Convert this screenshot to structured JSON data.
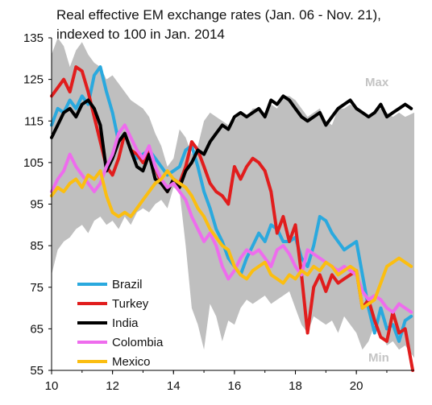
{
  "chart_data": {
    "type": "line",
    "title_lines": [
      "Real effective EM exchange rates (Jan. 06 - Nov. 21),",
      "indexed to 100 in Jan. 2014"
    ],
    "xlabel": "",
    "ylabel": "",
    "x_unit": "year (20xx)",
    "xlim": [
      10,
      21.9
    ],
    "ylim": [
      55,
      135
    ],
    "x_ticks": [
      {
        "value": 10,
        "label": "10"
      },
      {
        "value": 12,
        "label": "12"
      },
      {
        "value": 14,
        "label": "14"
      },
      {
        "value": 16,
        "label": "16"
      },
      {
        "value": 18,
        "label": "18"
      },
      {
        "value": 20,
        "label": "20"
      }
    ],
    "y_ticks": [
      {
        "value": 55,
        "label": "55"
      },
      {
        "value": 65,
        "label": "65"
      },
      {
        "value": 75,
        "label": "75"
      },
      {
        "value": 85,
        "label": "85"
      },
      {
        "value": 95,
        "label": "95"
      },
      {
        "value": 105,
        "label": "105"
      },
      {
        "value": 115,
        "label": "115"
      },
      {
        "value": 125,
        "label": "125"
      },
      {
        "value": 135,
        "label": "135"
      }
    ],
    "grid": false,
    "legend_position": "bottom-left",
    "band": {
      "color": "#bfbfbf",
      "max_label": "Max",
      "min_label": "Min",
      "x": [
        10.0,
        10.2,
        10.4,
        10.6,
        10.8,
        11.0,
        11.2,
        11.4,
        11.6,
        11.8,
        12.0,
        12.2,
        12.4,
        12.6,
        12.8,
        13.0,
        13.2,
        13.4,
        13.6,
        13.8,
        14.0,
        14.2,
        14.4,
        14.6,
        14.8,
        15.0,
        15.2,
        15.4,
        15.6,
        15.8,
        16.0,
        16.2,
        16.4,
        16.6,
        16.8,
        17.0,
        17.2,
        17.4,
        17.6,
        17.8,
        18.0,
        18.2,
        18.4,
        18.6,
        18.8,
        19.0,
        19.2,
        19.4,
        19.6,
        19.8,
        20.0,
        20.2,
        20.4,
        20.6,
        20.8,
        21.0,
        21.2,
        21.4,
        21.6,
        21.9
      ],
      "upper": [
        131,
        135,
        133,
        128,
        132,
        134,
        131,
        129,
        128,
        125,
        126,
        124,
        122,
        120,
        119,
        118,
        116,
        112,
        109,
        104,
        106,
        113,
        111,
        107,
        109,
        115,
        117,
        116,
        115,
        114,
        115,
        117,
        116,
        118,
        118,
        116,
        119,
        118,
        121,
        121,
        120,
        118,
        116,
        117,
        118,
        115,
        114,
        118,
        118,
        119,
        118,
        117,
        116,
        117,
        118,
        117,
        116,
        117,
        116,
        117
      ],
      "lower": [
        78,
        84,
        86,
        87,
        89,
        90,
        88,
        91,
        92,
        90,
        91,
        89,
        92,
        90,
        93,
        94,
        93,
        95,
        96,
        94,
        99,
        98,
        85,
        70,
        66,
        60,
        71,
        68,
        62,
        67,
        66,
        70,
        72,
        71,
        72,
        73,
        71,
        72,
        73,
        74,
        70,
        66,
        64,
        68,
        67,
        66,
        67,
        64,
        68,
        66,
        64,
        60,
        62,
        66,
        64,
        61,
        62,
        60,
        61,
        58
      ]
    },
    "series": [
      {
        "name": "Brazil",
        "color": "#2aa9de",
        "x": [
          10.0,
          10.2,
          10.4,
          10.6,
          10.8,
          11.0,
          11.2,
          11.4,
          11.6,
          11.8,
          12.0,
          12.2,
          12.4,
          12.6,
          12.8,
          13.0,
          13.2,
          13.4,
          13.6,
          13.8,
          14.0,
          14.2,
          14.4,
          14.6,
          14.8,
          15.0,
          15.2,
          15.4,
          15.6,
          15.8,
          16.0,
          16.2,
          16.4,
          16.6,
          16.8,
          17.0,
          17.2,
          17.4,
          17.6,
          17.8,
          18.0,
          18.2,
          18.4,
          18.6,
          18.8,
          19.0,
          19.2,
          19.4,
          19.6,
          19.8,
          20.0,
          20.2,
          20.4,
          20.6,
          20.8,
          21.0,
          21.2,
          21.4,
          21.6,
          21.8
        ],
        "values": [
          114,
          118,
          117,
          120,
          118,
          121,
          119,
          126,
          128,
          122,
          117,
          110,
          112,
          108,
          106,
          107,
          108,
          106,
          104,
          102,
          103,
          104,
          108,
          109,
          104,
          98,
          94,
          89,
          86,
          82,
          80,
          78,
          82,
          85,
          88,
          86,
          90,
          89,
          86,
          86,
          87,
          82,
          80,
          85,
          92,
          91,
          88,
          86,
          84,
          85,
          86,
          78,
          70,
          64,
          70,
          65,
          66,
          62,
          67,
          68
        ]
      },
      {
        "name": "Turkey",
        "color": "#e11d1d",
        "x": [
          10.0,
          10.2,
          10.4,
          10.6,
          10.8,
          11.0,
          11.2,
          11.4,
          11.6,
          11.8,
          12.0,
          12.2,
          12.4,
          12.6,
          12.8,
          13.0,
          13.2,
          13.4,
          13.6,
          13.8,
          14.0,
          14.2,
          14.4,
          14.6,
          14.8,
          15.0,
          15.2,
          15.4,
          15.6,
          15.8,
          16.0,
          16.2,
          16.4,
          16.6,
          16.8,
          17.0,
          17.2,
          17.4,
          17.6,
          17.8,
          18.0,
          18.2,
          18.4,
          18.6,
          18.8,
          19.0,
          19.2,
          19.4,
          19.6,
          19.8,
          20.0,
          20.2,
          20.4,
          20.6,
          20.8,
          21.0,
          21.2,
          21.4,
          21.6,
          21.85
        ],
        "values": [
          121,
          123,
          125,
          122,
          128,
          127,
          122,
          116,
          110,
          104,
          102,
          106,
          112,
          108,
          107,
          105,
          108,
          104,
          100,
          98,
          101,
          100,
          104,
          110,
          108,
          104,
          100,
          98,
          97,
          95,
          104,
          101,
          104,
          106,
          105,
          103,
          98,
          88,
          92,
          86,
          90,
          78,
          64,
          75,
          78,
          74,
          78,
          76,
          77,
          78,
          79,
          70,
          72,
          67,
          63,
          62,
          69,
          64,
          65,
          55
        ]
      },
      {
        "name": "India",
        "color": "#000000",
        "x": [
          10.0,
          10.2,
          10.4,
          10.6,
          10.8,
          11.0,
          11.2,
          11.4,
          11.6,
          11.8,
          12.0,
          12.2,
          12.4,
          12.6,
          12.8,
          13.0,
          13.2,
          13.4,
          13.6,
          13.8,
          14.0,
          14.2,
          14.4,
          14.6,
          14.8,
          15.0,
          15.2,
          15.4,
          15.6,
          15.8,
          16.0,
          16.2,
          16.4,
          16.6,
          16.8,
          17.0,
          17.2,
          17.4,
          17.6,
          17.8,
          18.0,
          18.2,
          18.4,
          18.6,
          18.8,
          19.0,
          19.2,
          19.4,
          19.6,
          19.8,
          20.0,
          20.2,
          20.4,
          20.6,
          20.8,
          21.0,
          21.2,
          21.4,
          21.6,
          21.8
        ],
        "values": [
          111,
          114,
          117,
          118,
          116,
          119,
          120,
          118,
          114,
          103,
          106,
          110,
          112,
          108,
          104,
          103,
          107,
          101,
          100,
          98,
          101,
          99,
          103,
          105,
          108,
          107,
          110,
          112,
          114,
          113,
          116,
          117,
          116,
          117,
          118,
          116,
          120,
          119,
          121,
          120,
          118,
          116,
          115,
          116,
          117,
          114,
          116,
          118,
          119,
          120,
          118,
          117,
          116,
          117,
          119,
          116,
          117,
          118,
          119,
          118
        ]
      },
      {
        "name": "Colombia",
        "color": "#ee6ced",
        "x": [
          10.0,
          10.2,
          10.4,
          10.6,
          10.8,
          11.0,
          11.2,
          11.4,
          11.6,
          11.8,
          12.0,
          12.2,
          12.4,
          12.6,
          12.8,
          13.0,
          13.2,
          13.4,
          13.6,
          13.8,
          14.0,
          14.2,
          14.4,
          14.6,
          14.8,
          15.0,
          15.2,
          15.4,
          15.6,
          15.8,
          16.0,
          16.2,
          16.4,
          16.6,
          16.8,
          17.0,
          17.2,
          17.4,
          17.6,
          17.8,
          18.0,
          18.2,
          18.4,
          18.6,
          18.8,
          19.0,
          19.2,
          19.4,
          19.6,
          19.8,
          20.0,
          20.2,
          20.4,
          20.6,
          20.8,
          21.0,
          21.2,
          21.4,
          21.6,
          21.8
        ],
        "values": [
          98,
          101,
          103,
          107,
          104,
          102,
          100,
          98,
          100,
          104,
          107,
          112,
          114,
          111,
          108,
          106,
          109,
          104,
          101,
          99,
          100,
          98,
          96,
          92,
          89,
          86,
          88,
          85,
          80,
          77,
          79,
          82,
          84,
          83,
          84,
          82,
          80,
          84,
          85,
          83,
          80,
          78,
          84,
          83,
          82,
          81,
          80,
          79,
          80,
          79,
          78,
          74,
          72,
          73,
          72,
          70,
          69,
          71,
          70,
          69
        ]
      },
      {
        "name": "Mexico",
        "color": "#fbbe11",
        "x": [
          10.0,
          10.2,
          10.4,
          10.6,
          10.8,
          11.0,
          11.2,
          11.4,
          11.6,
          11.8,
          12.0,
          12.2,
          12.4,
          12.6,
          12.8,
          13.0,
          13.2,
          13.4,
          13.6,
          13.8,
          14.0,
          14.2,
          14.4,
          14.6,
          14.8,
          15.0,
          15.2,
          15.4,
          15.6,
          15.8,
          16.0,
          16.2,
          16.4,
          16.6,
          16.8,
          17.0,
          17.2,
          17.4,
          17.6,
          17.8,
          18.0,
          18.2,
          18.4,
          18.6,
          18.8,
          19.0,
          19.2,
          19.4,
          19.6,
          19.8,
          20.0,
          20.2,
          20.4,
          20.6,
          20.8,
          21.0,
          21.2,
          21.4,
          21.6,
          21.8
        ],
        "values": [
          97,
          99,
          98,
          100,
          101,
          99,
          102,
          101,
          103,
          97,
          93,
          92,
          93,
          92,
          94,
          96,
          98,
          100,
          101,
          103,
          101,
          100,
          99,
          97,
          94,
          92,
          89,
          87,
          85,
          84,
          80,
          78,
          77,
          79,
          80,
          81,
          78,
          77,
          76,
          78,
          77,
          79,
          78,
          80,
          79,
          81,
          80,
          78,
          79,
          80,
          79,
          70,
          71,
          72,
          76,
          80,
          81,
          82,
          81,
          80
        ]
      }
    ]
  }
}
